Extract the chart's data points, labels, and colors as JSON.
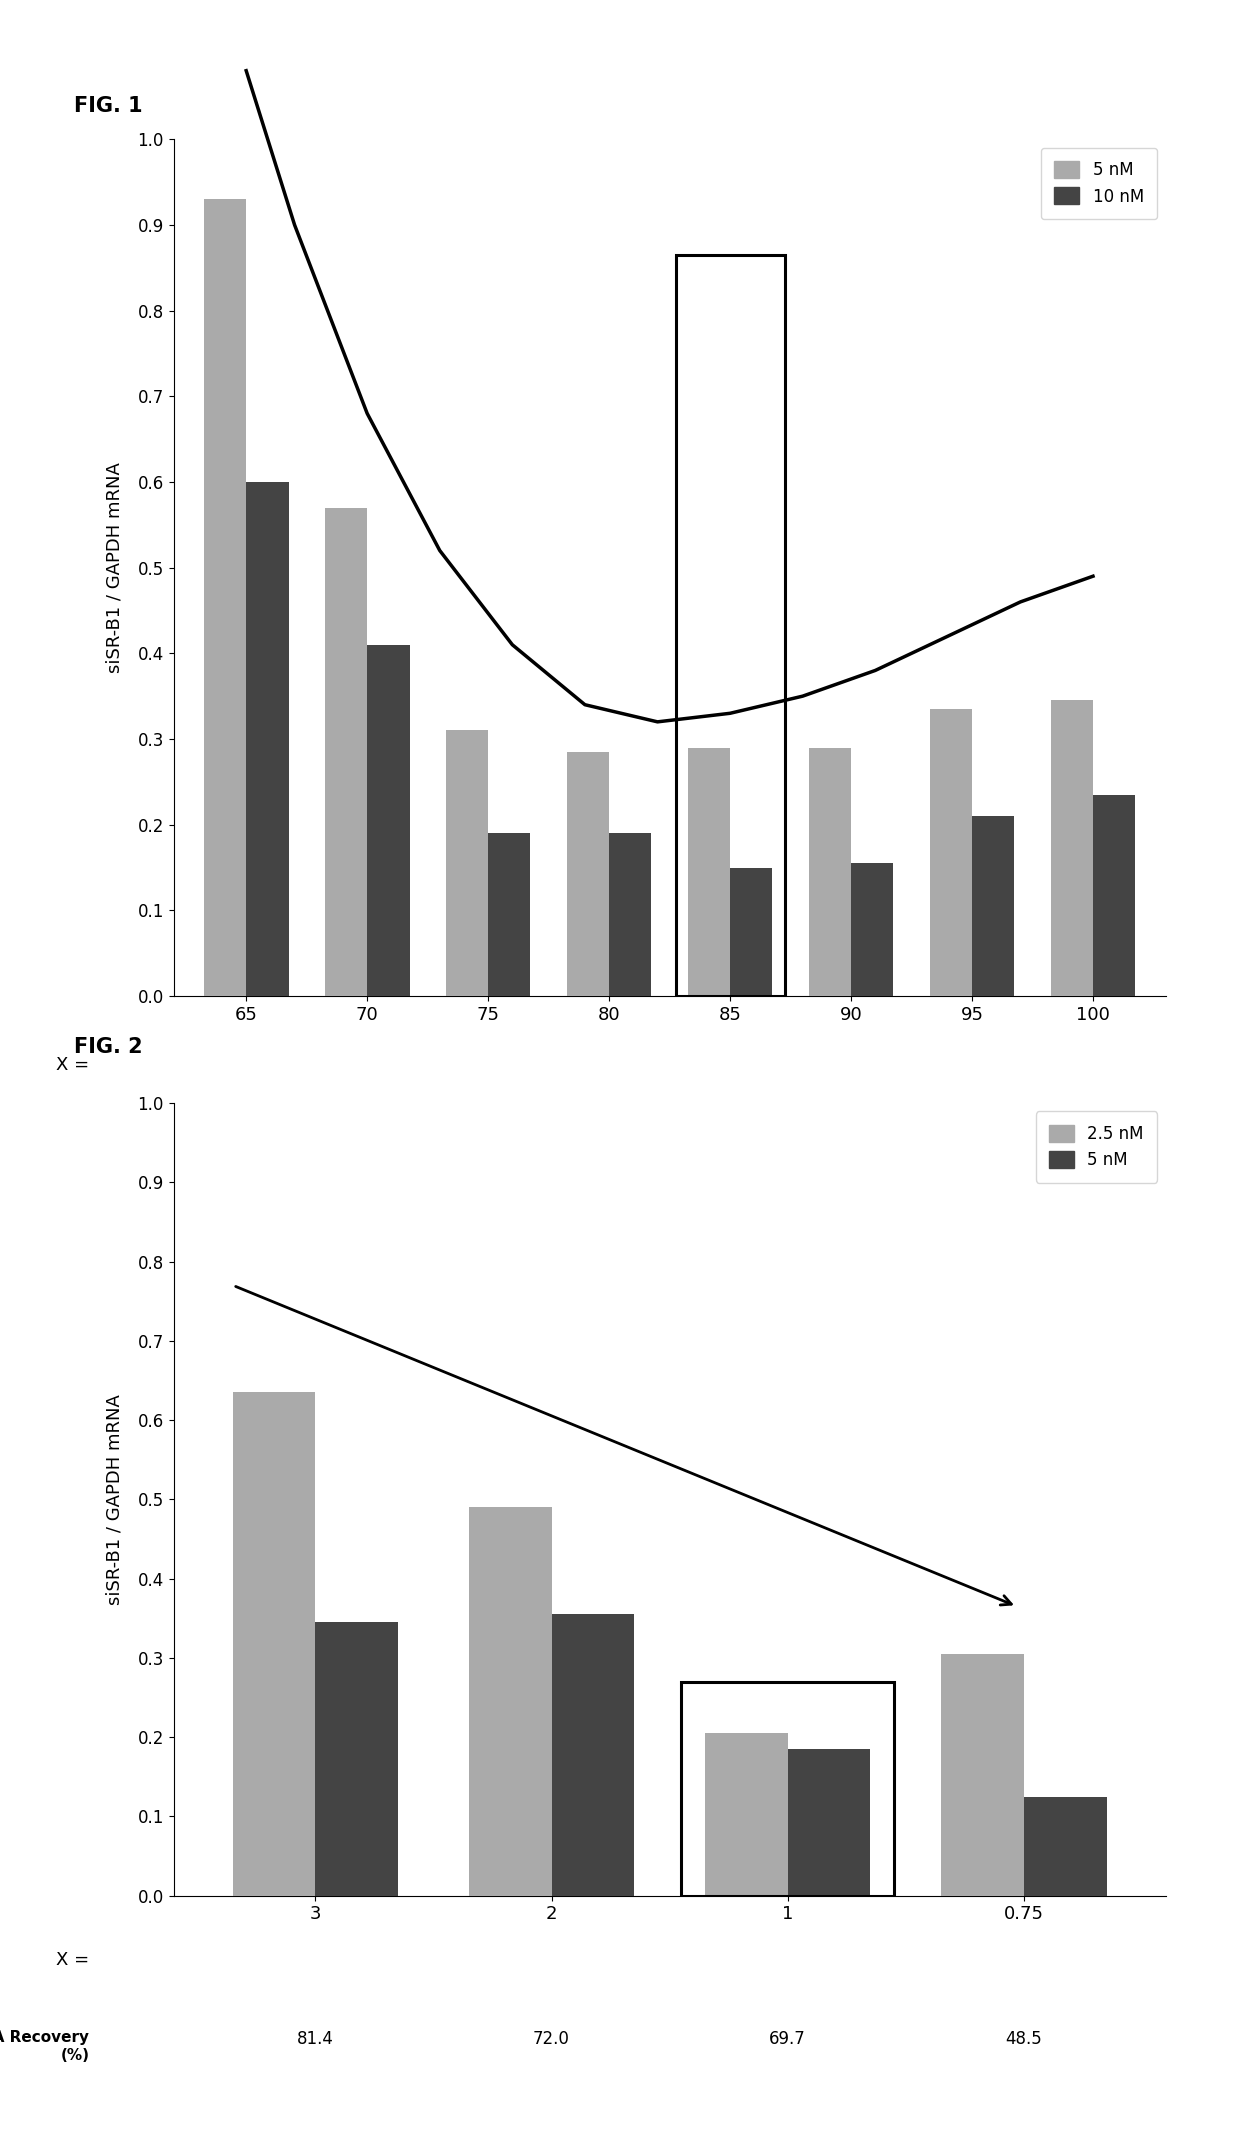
{
  "fig1": {
    "title": "FIG. 1",
    "categories": [
      "65",
      "70",
      "75",
      "80",
      "85",
      "90",
      "95",
      "100"
    ],
    "x_label": "X =",
    "y_label": "siSR-B1 / GAPDH mRNA",
    "values_5nM": [
      0.93,
      0.57,
      0.31,
      0.285,
      0.29,
      0.29,
      0.335,
      0.345
    ],
    "values_10nM": [
      0.6,
      0.41,
      0.19,
      0.19,
      0.15,
      0.155,
      0.21,
      0.235
    ],
    "legend_labels": [
      "5 nM",
      "10 nM"
    ],
    "color_light": "#aaaaaa",
    "color_dark": "#444444",
    "ylim": [
      0,
      1.0
    ],
    "yticks": [
      0,
      0.1,
      0.2,
      0.3,
      0.4,
      0.5,
      0.6,
      0.7,
      0.8,
      0.9,
      1
    ],
    "highlight_idx": 4,
    "curve_x": [
      65,
      67,
      70,
      73,
      76,
      79,
      82,
      85,
      88,
      91,
      94,
      97,
      100
    ],
    "curve_y": [
      1.08,
      0.9,
      0.68,
      0.52,
      0.41,
      0.34,
      0.32,
      0.33,
      0.35,
      0.38,
      0.42,
      0.46,
      0.49
    ]
  },
  "fig2": {
    "title": "FIG. 2",
    "categories": [
      "3",
      "2",
      "1",
      "0.75"
    ],
    "x_label": "X =",
    "y_label": "siSR-B1 / GAPDH mRNA",
    "values_2p5nM": [
      0.635,
      0.49,
      0.205,
      0.305
    ],
    "values_5nM": [
      0.345,
      0.355,
      0.185,
      0.125
    ],
    "legend_labels": [
      "2.5 nM",
      "5 nM"
    ],
    "color_light": "#aaaaaa",
    "color_dark": "#444444",
    "ylim": [
      0,
      1.0
    ],
    "yticks": [
      0,
      0.1,
      0.2,
      0.3,
      0.4,
      0.5,
      0.6,
      0.7,
      0.8,
      0.9,
      1
    ],
    "highlight_idx": 2,
    "recovery_label": "siRNA Recovery\n(%)",
    "recovery_values": [
      "81.4",
      "72.0",
      "69.7",
      "48.5"
    ]
  }
}
